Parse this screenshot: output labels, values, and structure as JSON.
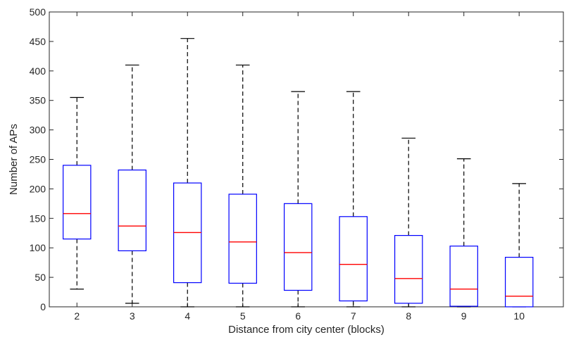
{
  "chart_data": {
    "type": "box",
    "title": "",
    "xlabel": "Distance from city center (blocks)",
    "ylabel": "Number of APs",
    "categories": [
      "2",
      "3",
      "4",
      "5",
      "6",
      "7",
      "8",
      "9",
      "10"
    ],
    "ylim": [
      0,
      500
    ],
    "yticks": [
      0,
      50,
      100,
      150,
      200,
      250,
      300,
      350,
      400,
      450,
      500
    ],
    "grid": false,
    "boxes": [
      {
        "category": "2",
        "whisker_low": 30,
        "q1": 115,
        "median": 158,
        "q3": 240,
        "whisker_high": 355
      },
      {
        "category": "3",
        "whisker_low": 6,
        "q1": 95,
        "median": 137,
        "q3": 232,
        "whisker_high": 410
      },
      {
        "category": "4",
        "whisker_low": 0,
        "q1": 41,
        "median": 126,
        "q3": 210,
        "whisker_high": 455
      },
      {
        "category": "5",
        "whisker_low": 0,
        "q1": 40,
        "median": 110,
        "q3": 191,
        "whisker_high": 410
      },
      {
        "category": "6",
        "whisker_low": 0,
        "q1": 28,
        "median": 92,
        "q3": 175,
        "whisker_high": 365
      },
      {
        "category": "7",
        "whisker_low": 0,
        "q1": 10,
        "median": 72,
        "q3": 153,
        "whisker_high": 365
      },
      {
        "category": "8",
        "whisker_low": 0,
        "q1": 6,
        "median": 48,
        "q3": 121,
        "whisker_high": 286
      },
      {
        "category": "9",
        "whisker_low": 0,
        "q1": 1,
        "median": 30,
        "q3": 103,
        "whisker_high": 251
      },
      {
        "category": "10",
        "whisker_low": 0,
        "q1": 0,
        "median": 18,
        "q3": 84,
        "whisker_high": 209
      }
    ],
    "colors": {
      "box": "#0000ff",
      "median": "#ff0000",
      "whisker": "#000000",
      "axis": "#262626"
    }
  }
}
